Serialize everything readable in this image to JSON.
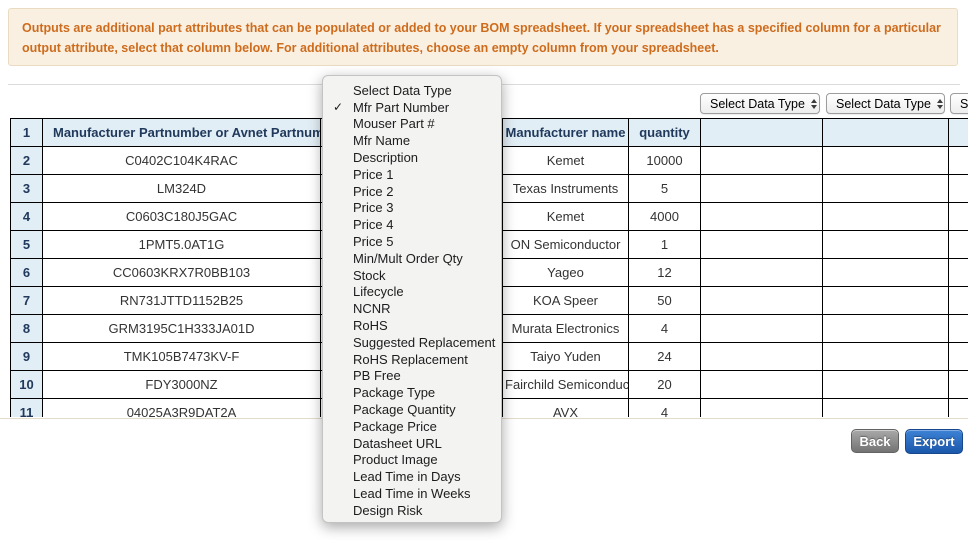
{
  "banner": {
    "text": "Outputs are additional part attributes that can be populated or added to your BOM spreadsheet. If your spreadsheet has a specified column for a particular output attribute, select that column below. For additional attributes, choose an empty column from your spreadsheet."
  },
  "toolbar": {
    "selects": [
      {
        "value": "Select Data Type"
      },
      {
        "value": "Select Data Type"
      },
      {
        "value": "Select Data Type"
      }
    ]
  },
  "dropdown": {
    "items": [
      {
        "label": "Select Data Type",
        "checked": false
      },
      {
        "label": "Mfr Part Number",
        "checked": true
      },
      {
        "label": "Mouser Part #",
        "checked": false
      },
      {
        "label": "Mfr Name",
        "checked": false
      },
      {
        "label": "Description",
        "checked": false
      },
      {
        "label": "Price 1",
        "checked": false
      },
      {
        "label": "Price 2",
        "checked": false
      },
      {
        "label": "Price 3",
        "checked": false
      },
      {
        "label": "Price 4",
        "checked": false
      },
      {
        "label": "Price 5",
        "checked": false
      },
      {
        "label": "Min/Mult Order Qty",
        "checked": false
      },
      {
        "label": "Stock",
        "checked": false
      },
      {
        "label": "Lifecycle",
        "checked": false
      },
      {
        "label": "NCNR",
        "checked": false
      },
      {
        "label": "RoHS",
        "checked": false
      },
      {
        "label": "Suggested Replacement",
        "checked": false
      },
      {
        "label": "RoHS Replacement",
        "checked": false
      },
      {
        "label": "PB Free",
        "checked": false
      },
      {
        "label": "Package Type",
        "checked": false
      },
      {
        "label": "Package Quantity",
        "checked": false
      },
      {
        "label": "Package Price",
        "checked": false
      },
      {
        "label": "Datasheet URL",
        "checked": false
      },
      {
        "label": "Product Image",
        "checked": false
      },
      {
        "label": "Lead Time in Days",
        "checked": false
      },
      {
        "label": "Lead Time in Weeks",
        "checked": false
      },
      {
        "label": "Design Risk",
        "checked": false
      }
    ]
  },
  "table": {
    "header_row_number": "1",
    "columns": {
      "part": "Manufacturer Partnumber or Avnet Partnumber",
      "manufacturer": "Manufacturer name",
      "quantity": "quantity"
    },
    "rows": [
      {
        "num": "2",
        "part": "C0402C104K4RAC",
        "manufacturer": "Kemet",
        "qty": "10000"
      },
      {
        "num": "3",
        "part": "LM324D",
        "manufacturer": "Texas Instruments",
        "qty": "5"
      },
      {
        "num": "4",
        "part": "C0603C180J5GAC",
        "manufacturer": "Kemet",
        "qty": "4000"
      },
      {
        "num": "5",
        "part": "1PMT5.0AT1G",
        "manufacturer": "ON Semiconductor",
        "qty": "1"
      },
      {
        "num": "6",
        "part": "CC0603KRX7R0BB103",
        "manufacturer": "Yageo",
        "qty": "12"
      },
      {
        "num": "7",
        "part": "RN731JTTD1152B25",
        "manufacturer": "KOA Speer",
        "qty": "50"
      },
      {
        "num": "8",
        "part": "GRM3195C1H333JA01D",
        "manufacturer": "Murata Electronics",
        "qty": "4"
      },
      {
        "num": "9",
        "part": "TMK105B7473KV-F",
        "manufacturer": "Taiyo Yuden",
        "qty": "24"
      },
      {
        "num": "10",
        "part": "FDY3000NZ",
        "manufacturer": "Fairchild Semiconductor",
        "qty": "20"
      },
      {
        "num": "11",
        "part": "04025A3R9DAT2A",
        "manufacturer": "AVX",
        "qty": "4"
      }
    ]
  },
  "actions": {
    "back": "Back",
    "export": "Export"
  },
  "colors": {
    "banner_bg": "#faf0e1",
    "banner_text": "#ce6c1e",
    "header_bg": "#e2eef5",
    "header_text": "#20395c",
    "export_blue": "#1b57ab",
    "back_gray": "#737373"
  }
}
